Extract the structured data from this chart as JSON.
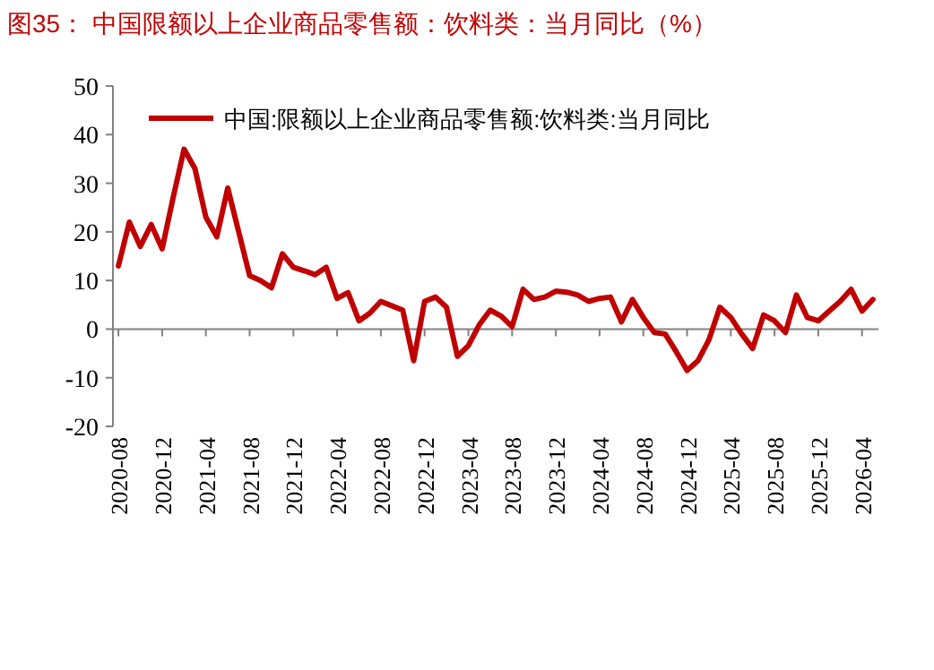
{
  "chart_data": {
    "type": "line",
    "title": "图35：  中国限额以上企业商品零售额：饮料类：当月同比（%）",
    "categories": [
      "2020-08",
      null,
      null,
      null,
      "2020-12",
      null,
      null,
      null,
      "2021-04",
      null,
      null,
      null,
      "2021-08",
      null,
      null,
      null,
      "2021-12",
      null,
      null,
      null,
      "2022-04",
      null,
      null,
      null,
      "2022-08",
      null,
      null,
      null,
      "2022-12",
      null,
      null,
      null,
      "2023-04",
      null,
      null,
      null,
      "2023-08",
      null,
      null,
      null,
      "2023-12",
      null,
      null,
      null,
      "2024-04",
      null,
      null,
      null,
      "2024-08",
      null,
      null,
      null,
      "2024-12",
      null,
      null,
      null,
      "2025-04",
      null,
      null,
      null,
      "2025-08",
      null,
      null,
      null,
      "2025-12",
      null,
      null,
      null,
      "2026-04",
      null
    ],
    "series": [
      {
        "name": "中国:限额以上企业商品零售额:饮料类:当月同比",
        "color": "#c00000",
        "values": [
          13,
          22,
          17,
          21.5,
          16.5,
          27,
          37,
          33,
          23,
          19,
          29,
          20,
          11,
          10,
          8.5,
          15.5,
          12.7,
          12,
          11.2,
          12.7,
          6.3,
          7.5,
          1.7,
          3.3,
          5.7,
          4.8,
          3.9,
          -6.5,
          5.7,
          6.6,
          4.5,
          -5.6,
          -3.4,
          0.9,
          3.9,
          2.7,
          0.5,
          8.2,
          6.1,
          6.6,
          7.8,
          7.6,
          7,
          5.7,
          6.3,
          6.6,
          1.5,
          6.1,
          2.4,
          -0.7,
          -1,
          -4.6,
          -8.5,
          -6.5,
          -2.2,
          4.5,
          2.4,
          -1,
          -4,
          2.9,
          1.7,
          -0.7,
          7,
          2.4,
          1.7,
          3.7,
          5.7,
          8.2,
          3.7,
          6.1
        ]
      }
    ],
    "ylim": [
      -20,
      50
    ],
    "yticks": [
      -20,
      -10,
      0,
      10,
      20,
      30,
      40,
      50
    ],
    "legend": "top left",
    "marker": "none",
    "line_style": "solid"
  }
}
